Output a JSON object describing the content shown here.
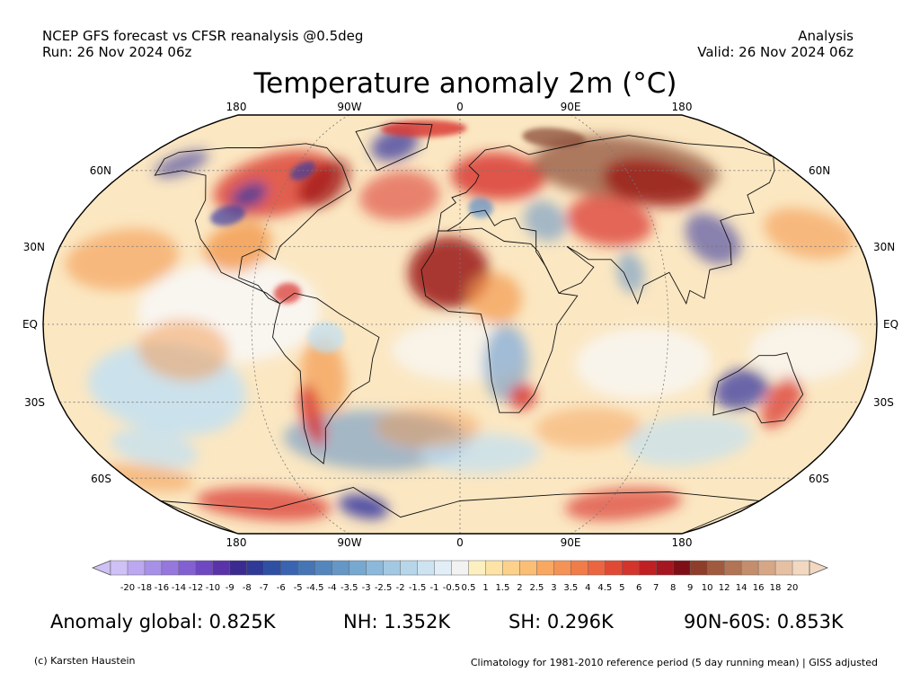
{
  "header": {
    "source_line": "NCEP GFS forecast vs CFSR reanalysis @0.5deg",
    "run_line": "Run: 26 Nov 2024 06z",
    "type_line": "Analysis",
    "valid_line": "Valid: 26 Nov 2024 06z"
  },
  "title": "Temperature anomaly 2m (°C)",
  "map": {
    "projection": "robinson",
    "lon_labels": [
      "180",
      "90W",
      "0",
      "90E",
      "180"
    ],
    "lat_labels_left": [
      "60N",
      "30N",
      "EQ",
      "30S",
      "60S"
    ],
    "lat_labels_right": [
      "60N",
      "30N",
      "EQ",
      "30S",
      "60S"
    ],
    "colors": {
      "deep_blue": "#3a3aa0",
      "blue": "#5b8fc8",
      "light_blue": "#bfe0f5",
      "white": "#f8f8f8",
      "light_orange": "#fbd9a0",
      "orange": "#f39a50",
      "red": "#d8302a",
      "dark_red": "#9b1414",
      "brown": "#8a4a35"
    }
  },
  "colorbar": {
    "labels": [
      "-20",
      "-18",
      "-16",
      "-14",
      "-12",
      "-10",
      "-9",
      "-8",
      "-7",
      "-6",
      "-5",
      "-4.5",
      "-4",
      "-3.5",
      "-3",
      "-2.5",
      "-2",
      "-1.5",
      "-1",
      "-0.5",
      "0.5",
      "1",
      "1.5",
      "2",
      "2.5",
      "3",
      "3.5",
      "4",
      "4.5",
      "5",
      "6",
      "7",
      "8",
      "9",
      "10",
      "12",
      "14",
      "16",
      "18",
      "20"
    ],
    "colors": [
      "#cfc0f5",
      "#bba8f0",
      "#a790e8",
      "#9577de",
      "#8360d2",
      "#6f47c2",
      "#5a33a8",
      "#3b2a8f",
      "#2e3a96",
      "#2f4fa3",
      "#3a63b0",
      "#4575b4",
      "#5486bd",
      "#6497c6",
      "#77a8d0",
      "#8cb8da",
      "#a3c8e2",
      "#b7d6ea",
      "#cde3f2",
      "#e1eef8",
      "#f2f2f2",
      "#fdf0c0",
      "#fde3a6",
      "#fcd18c",
      "#fbbe75",
      "#f9a862",
      "#f59255",
      "#f07c4a",
      "#ea6540",
      "#e04a35",
      "#d3342b",
      "#c01f24",
      "#a51620",
      "#7f0f16",
      "#8e3d2a",
      "#a05a3e",
      "#b27454",
      "#c48d6c",
      "#d6a786",
      "#e6c0a3",
      "#f2d8c0"
    ]
  },
  "stats": {
    "global": "Anomaly global: 0.825K",
    "nh": "NH: 1.352K",
    "sh": "SH: 0.296K",
    "arctic": "90N-60S: 0.853K"
  },
  "footer": {
    "credit": "(c) Karsten Haustein",
    "note": "Climatology for 1981-2010 reference period (5 day running mean) | GISS adjusted"
  }
}
